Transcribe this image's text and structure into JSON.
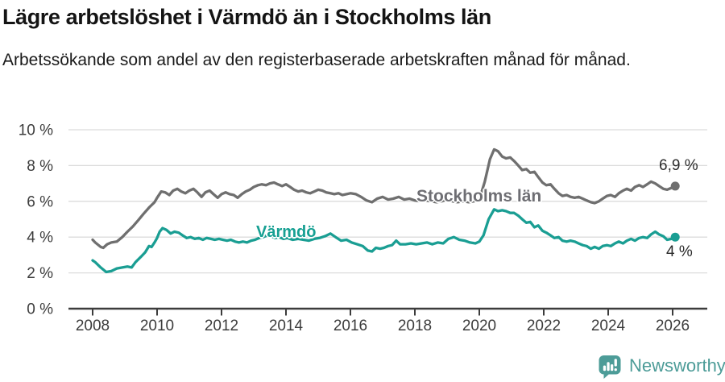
{
  "header": {
    "title": "Lägre arbetslöshet i Värmdö än i Stockholms län",
    "subtitle": "Arbetssökande som andel av den registerbaserade arbetskraften månad för månad."
  },
  "chart_data": {
    "type": "line",
    "grid": "horizontal",
    "legend": "inline-labels",
    "x_axis": {
      "ticks": [
        2008,
        2010,
        2012,
        2014,
        2016,
        2018,
        2020,
        2022,
        2024,
        2026
      ]
    },
    "y_axis": {
      "ticks": [
        0,
        2,
        4,
        6,
        8,
        10
      ],
      "tick_labels": [
        "0 %",
        "2 %",
        "4 %",
        "6 %",
        "8 %",
        "10 %"
      ],
      "range": [
        0,
        10
      ],
      "unit": "%"
    },
    "series": [
      {
        "name": "Stockholms län",
        "color": "#6f6f6f",
        "end_label": "6,9 %",
        "points": [
          [
            2008.0,
            3.85
          ],
          [
            2008.08,
            3.7
          ],
          [
            2008.25,
            3.45
          ],
          [
            2008.33,
            3.4
          ],
          [
            2008.45,
            3.6
          ],
          [
            2008.58,
            3.7
          ],
          [
            2008.75,
            3.75
          ],
          [
            2008.92,
            4.0
          ],
          [
            2009.08,
            4.3
          ],
          [
            2009.25,
            4.6
          ],
          [
            2009.42,
            4.95
          ],
          [
            2009.58,
            5.3
          ],
          [
            2009.75,
            5.65
          ],
          [
            2009.92,
            5.95
          ],
          [
            2010.0,
            6.2
          ],
          [
            2010.13,
            6.55
          ],
          [
            2010.25,
            6.5
          ],
          [
            2010.38,
            6.35
          ],
          [
            2010.5,
            6.6
          ],
          [
            2010.63,
            6.7
          ],
          [
            2010.75,
            6.55
          ],
          [
            2010.88,
            6.45
          ],
          [
            2011.0,
            6.6
          ],
          [
            2011.13,
            6.7
          ],
          [
            2011.25,
            6.5
          ],
          [
            2011.38,
            6.25
          ],
          [
            2011.5,
            6.5
          ],
          [
            2011.63,
            6.6
          ],
          [
            2011.75,
            6.4
          ],
          [
            2011.88,
            6.2
          ],
          [
            2012.0,
            6.4
          ],
          [
            2012.13,
            6.5
          ],
          [
            2012.25,
            6.4
          ],
          [
            2012.38,
            6.35
          ],
          [
            2012.5,
            6.2
          ],
          [
            2012.63,
            6.4
          ],
          [
            2012.75,
            6.55
          ],
          [
            2012.88,
            6.65
          ],
          [
            2013.0,
            6.8
          ],
          [
            2013.13,
            6.9
          ],
          [
            2013.25,
            6.95
          ],
          [
            2013.38,
            6.9
          ],
          [
            2013.5,
            7.0
          ],
          [
            2013.63,
            7.05
          ],
          [
            2013.75,
            6.95
          ],
          [
            2013.88,
            6.85
          ],
          [
            2014.0,
            6.95
          ],
          [
            2014.13,
            6.8
          ],
          [
            2014.25,
            6.65
          ],
          [
            2014.38,
            6.55
          ],
          [
            2014.5,
            6.6
          ],
          [
            2014.63,
            6.5
          ],
          [
            2014.75,
            6.45
          ],
          [
            2014.88,
            6.55
          ],
          [
            2015.0,
            6.65
          ],
          [
            2015.13,
            6.6
          ],
          [
            2015.25,
            6.5
          ],
          [
            2015.38,
            6.45
          ],
          [
            2015.5,
            6.4
          ],
          [
            2015.63,
            6.45
          ],
          [
            2015.75,
            6.35
          ],
          [
            2015.88,
            6.4
          ],
          [
            2016.0,
            6.45
          ],
          [
            2016.17,
            6.4
          ],
          [
            2016.33,
            6.25
          ],
          [
            2016.5,
            6.05
          ],
          [
            2016.67,
            5.95
          ],
          [
            2016.83,
            6.15
          ],
          [
            2017.0,
            6.25
          ],
          [
            2017.17,
            6.1
          ],
          [
            2017.33,
            6.15
          ],
          [
            2017.5,
            6.25
          ],
          [
            2017.67,
            6.1
          ],
          [
            2017.83,
            6.15
          ],
          [
            2018.0,
            6.05
          ],
          [
            2018.17,
            6.0
          ],
          [
            2018.33,
            6.05
          ],
          [
            2018.5,
            6.0
          ],
          [
            2018.67,
            5.95
          ],
          [
            2018.83,
            6.0
          ],
          [
            2019.0,
            6.1
          ],
          [
            2019.17,
            6.0
          ],
          [
            2019.33,
            5.95
          ],
          [
            2019.5,
            6.0
          ],
          [
            2019.67,
            5.95
          ],
          [
            2019.83,
            6.0
          ],
          [
            2020.0,
            6.1
          ],
          [
            2020.17,
            7.1
          ],
          [
            2020.33,
            8.35
          ],
          [
            2020.46,
            8.9
          ],
          [
            2020.58,
            8.8
          ],
          [
            2020.71,
            8.5
          ],
          [
            2020.83,
            8.4
          ],
          [
            2020.96,
            8.45
          ],
          [
            2021.08,
            8.25
          ],
          [
            2021.21,
            8.0
          ],
          [
            2021.33,
            7.75
          ],
          [
            2021.46,
            7.8
          ],
          [
            2021.58,
            7.6
          ],
          [
            2021.71,
            7.65
          ],
          [
            2021.83,
            7.35
          ],
          [
            2021.96,
            7.05
          ],
          [
            2022.08,
            6.9
          ],
          [
            2022.21,
            6.95
          ],
          [
            2022.33,
            6.7
          ],
          [
            2022.46,
            6.45
          ],
          [
            2022.58,
            6.3
          ],
          [
            2022.71,
            6.35
          ],
          [
            2022.83,
            6.25
          ],
          [
            2022.96,
            6.2
          ],
          [
            2023.08,
            6.25
          ],
          [
            2023.21,
            6.15
          ],
          [
            2023.33,
            6.05
          ],
          [
            2023.46,
            5.95
          ],
          [
            2023.58,
            5.9
          ],
          [
            2023.71,
            6.0
          ],
          [
            2023.83,
            6.15
          ],
          [
            2023.96,
            6.3
          ],
          [
            2024.08,
            6.35
          ],
          [
            2024.21,
            6.25
          ],
          [
            2024.33,
            6.45
          ],
          [
            2024.46,
            6.6
          ],
          [
            2024.58,
            6.7
          ],
          [
            2024.71,
            6.6
          ],
          [
            2024.83,
            6.8
          ],
          [
            2024.96,
            6.9
          ],
          [
            2025.08,
            6.8
          ],
          [
            2025.21,
            6.95
          ],
          [
            2025.33,
            7.1
          ],
          [
            2025.46,
            7.0
          ],
          [
            2025.58,
            6.85
          ],
          [
            2025.71,
            6.7
          ],
          [
            2025.83,
            6.65
          ],
          [
            2025.96,
            6.75
          ],
          [
            2026.08,
            6.85
          ]
        ]
      },
      {
        "name": "Värmdö",
        "color": "#1a9e93",
        "end_label": "4 %",
        "points": [
          [
            2008.0,
            2.7
          ],
          [
            2008.08,
            2.6
          ],
          [
            2008.25,
            2.3
          ],
          [
            2008.42,
            2.05
          ],
          [
            2008.58,
            2.1
          ],
          [
            2008.75,
            2.25
          ],
          [
            2008.92,
            2.3
          ],
          [
            2009.08,
            2.35
          ],
          [
            2009.21,
            2.3
          ],
          [
            2009.33,
            2.6
          ],
          [
            2009.5,
            2.9
          ],
          [
            2009.63,
            3.15
          ],
          [
            2009.75,
            3.5
          ],
          [
            2009.83,
            3.45
          ],
          [
            2009.92,
            3.7
          ],
          [
            2010.0,
            3.95
          ],
          [
            2010.08,
            4.3
          ],
          [
            2010.17,
            4.5
          ],
          [
            2010.29,
            4.4
          ],
          [
            2010.42,
            4.2
          ],
          [
            2010.54,
            4.3
          ],
          [
            2010.67,
            4.25
          ],
          [
            2010.79,
            4.1
          ],
          [
            2010.92,
            3.95
          ],
          [
            2011.04,
            4.0
          ],
          [
            2011.17,
            3.9
          ],
          [
            2011.29,
            3.95
          ],
          [
            2011.42,
            3.85
          ],
          [
            2011.54,
            3.95
          ],
          [
            2011.67,
            3.9
          ],
          [
            2011.79,
            3.85
          ],
          [
            2011.92,
            3.9
          ],
          [
            2012.04,
            3.85
          ],
          [
            2012.17,
            3.8
          ],
          [
            2012.29,
            3.85
          ],
          [
            2012.42,
            3.75
          ],
          [
            2012.54,
            3.7
          ],
          [
            2012.67,
            3.75
          ],
          [
            2012.79,
            3.7
          ],
          [
            2012.92,
            3.8
          ],
          [
            2013.04,
            3.85
          ],
          [
            2013.17,
            3.95
          ],
          [
            2013.29,
            4.0
          ],
          [
            2013.42,
            4.1
          ],
          [
            2013.54,
            4.05
          ],
          [
            2013.67,
            3.95
          ],
          [
            2013.79,
            4.0
          ],
          [
            2013.92,
            3.9
          ],
          [
            2014.04,
            3.95
          ],
          [
            2014.21,
            3.85
          ],
          [
            2014.38,
            3.9
          ],
          [
            2014.54,
            3.85
          ],
          [
            2014.71,
            3.8
          ],
          [
            2014.88,
            3.9
          ],
          [
            2015.04,
            3.95
          ],
          [
            2015.21,
            4.05
          ],
          [
            2015.38,
            4.2
          ],
          [
            2015.54,
            4.0
          ],
          [
            2015.71,
            3.8
          ],
          [
            2015.88,
            3.85
          ],
          [
            2016.04,
            3.7
          ],
          [
            2016.21,
            3.6
          ],
          [
            2016.38,
            3.5
          ],
          [
            2016.54,
            3.25
          ],
          [
            2016.67,
            3.2
          ],
          [
            2016.79,
            3.4
          ],
          [
            2016.92,
            3.35
          ],
          [
            2017.04,
            3.4
          ],
          [
            2017.17,
            3.5
          ],
          [
            2017.29,
            3.55
          ],
          [
            2017.42,
            3.8
          ],
          [
            2017.54,
            3.6
          ],
          [
            2017.71,
            3.6
          ],
          [
            2017.88,
            3.65
          ],
          [
            2018.04,
            3.6
          ],
          [
            2018.21,
            3.65
          ],
          [
            2018.38,
            3.7
          ],
          [
            2018.54,
            3.6
          ],
          [
            2018.71,
            3.7
          ],
          [
            2018.88,
            3.65
          ],
          [
            2019.04,
            3.9
          ],
          [
            2019.21,
            4.0
          ],
          [
            2019.38,
            3.85
          ],
          [
            2019.54,
            3.8
          ],
          [
            2019.71,
            3.7
          ],
          [
            2019.88,
            3.65
          ],
          [
            2020.0,
            3.75
          ],
          [
            2020.13,
            4.1
          ],
          [
            2020.29,
            5.0
          ],
          [
            2020.46,
            5.55
          ],
          [
            2020.58,
            5.45
          ],
          [
            2020.71,
            5.5
          ],
          [
            2020.83,
            5.45
          ],
          [
            2020.96,
            5.35
          ],
          [
            2021.08,
            5.35
          ],
          [
            2021.21,
            5.2
          ],
          [
            2021.33,
            5.0
          ],
          [
            2021.46,
            4.8
          ],
          [
            2021.58,
            4.85
          ],
          [
            2021.71,
            4.55
          ],
          [
            2021.83,
            4.65
          ],
          [
            2021.96,
            4.35
          ],
          [
            2022.08,
            4.25
          ],
          [
            2022.21,
            4.1
          ],
          [
            2022.33,
            3.95
          ],
          [
            2022.46,
            4.0
          ],
          [
            2022.58,
            3.8
          ],
          [
            2022.71,
            3.75
          ],
          [
            2022.83,
            3.8
          ],
          [
            2022.96,
            3.75
          ],
          [
            2023.08,
            3.65
          ],
          [
            2023.21,
            3.55
          ],
          [
            2023.33,
            3.5
          ],
          [
            2023.46,
            3.35
          ],
          [
            2023.58,
            3.45
          ],
          [
            2023.71,
            3.35
          ],
          [
            2023.83,
            3.5
          ],
          [
            2023.96,
            3.55
          ],
          [
            2024.08,
            3.5
          ],
          [
            2024.21,
            3.65
          ],
          [
            2024.33,
            3.75
          ],
          [
            2024.46,
            3.65
          ],
          [
            2024.58,
            3.8
          ],
          [
            2024.71,
            3.9
          ],
          [
            2024.83,
            3.8
          ],
          [
            2024.96,
            3.95
          ],
          [
            2025.08,
            4.0
          ],
          [
            2025.21,
            3.95
          ],
          [
            2025.33,
            4.15
          ],
          [
            2025.46,
            4.3
          ],
          [
            2025.58,
            4.15
          ],
          [
            2025.71,
            4.05
          ],
          [
            2025.83,
            3.85
          ],
          [
            2025.96,
            3.9
          ],
          [
            2026.08,
            4.0
          ]
        ]
      }
    ]
  },
  "footer": {
    "brand": "Newsworthy"
  },
  "colors": {
    "background": "#ffffff",
    "text": "#141414",
    "axis": "#3c3c3c",
    "grid": "#dcdcdc",
    "stockholm_line": "#6f6f6f",
    "varmdo_line": "#1a9e93",
    "brand": "#4d9c98"
  }
}
